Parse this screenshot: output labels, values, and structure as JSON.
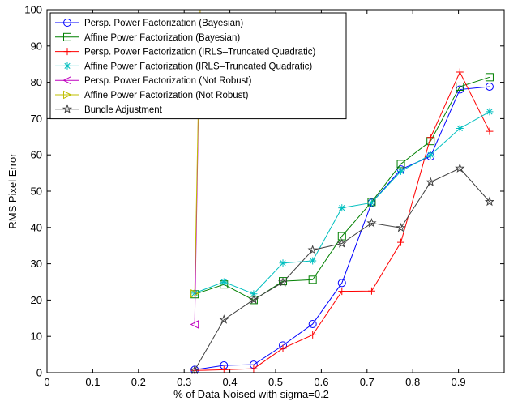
{
  "chart_data": {
    "type": "line",
    "title": "",
    "xlabel": "% of Data Noised with sigma=0.2",
    "ylabel": "RMS Pixel Error",
    "xlim": [
      0,
      1
    ],
    "ylim": [
      0,
      100
    ],
    "x_ticks": [
      0,
      0.1,
      0.2,
      0.3,
      0.4,
      0.5,
      0.6,
      0.7,
      0.8,
      0.9
    ],
    "y_ticks": [
      0,
      10,
      20,
      30,
      40,
      50,
      60,
      70,
      80,
      90,
      100
    ],
    "grid": false,
    "legend_position": "top-left",
    "series": [
      {
        "name": "Persp. Power Factorization (Bayesian)",
        "color": "#0000ff",
        "marker": "circle",
        "x": [
          0.323,
          0.387,
          0.452,
          0.516,
          0.581,
          0.645,
          0.71,
          0.774,
          0.839,
          0.903,
          0.968
        ],
        "y": [
          0.8,
          2.0,
          2.2,
          7.5,
          13.4,
          24.7,
          46.8,
          56.0,
          59.6,
          78.0,
          78.8
        ]
      },
      {
        "name": "Affine Power Factorization (Bayesian)",
        "color": "#008000",
        "marker": "square",
        "x": [
          0.323,
          0.387,
          0.452,
          0.516,
          0.581,
          0.645,
          0.71,
          0.774,
          0.839,
          0.903,
          0.968
        ],
        "y": [
          21.6,
          24.3,
          20.0,
          25.2,
          25.6,
          37.6,
          47.0,
          57.5,
          63.8,
          78.8,
          81.4
        ]
      },
      {
        "name": "Persp. Power Factorization (IRLS–Truncated Quadratic)",
        "color": "#ff0000",
        "marker": "plus",
        "x": [
          0.323,
          0.387,
          0.452,
          0.516,
          0.581,
          0.645,
          0.71,
          0.774,
          0.839,
          0.903,
          0.968
        ],
        "y": [
          0.6,
          0.8,
          1.1,
          6.7,
          10.4,
          22.4,
          22.5,
          35.9,
          64.8,
          82.8,
          66.5
        ]
      },
      {
        "name": "Affine Power Factorization (IRLS–Truncated Quadratic)",
        "color": "#00bfbf",
        "marker": "asterisk",
        "x": [
          0.323,
          0.387,
          0.452,
          0.516,
          0.581,
          0.645,
          0.71,
          0.774,
          0.839,
          0.903,
          0.968
        ],
        "y": [
          21.9,
          25.0,
          21.7,
          30.2,
          30.8,
          45.4,
          46.8,
          55.5,
          60.0,
          67.3,
          71.9
        ]
      },
      {
        "name": "Persp. Power Factorization (Not Robust)",
        "color": "#bf00bf",
        "marker": "triangle-left",
        "x": [
          0.323,
          0.335
        ],
        "y": [
          13.3,
          100
        ]
      },
      {
        "name": "Affine Power Factorization (Not Robust)",
        "color": "#bfbf00",
        "marker": "triangle-right",
        "x": [
          0.323,
          0.335
        ],
        "y": [
          21.8,
          100
        ]
      },
      {
        "name": "Bundle Adjustment",
        "color": "#404040",
        "marker": "star",
        "x": [
          0.323,
          0.387,
          0.452,
          0.516,
          0.581,
          0.645,
          0.71,
          0.774,
          0.839,
          0.903,
          0.968
        ],
        "y": [
          0.7,
          14.6,
          20.1,
          24.9,
          33.8,
          35.6,
          41.2,
          39.9,
          52.5,
          56.3,
          47.1
        ]
      }
    ]
  }
}
